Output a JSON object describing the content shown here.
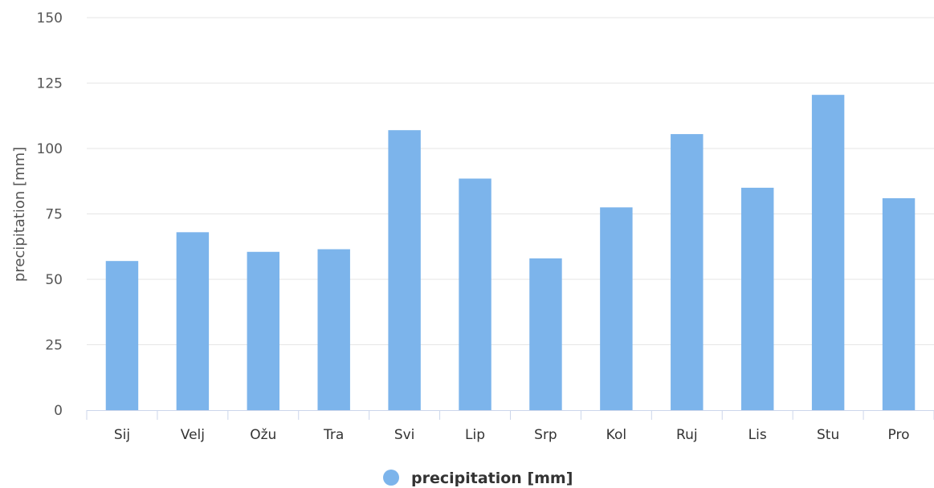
{
  "chart_data": {
    "type": "bar",
    "categories": [
      "Sij",
      "Velj",
      "Ožu",
      "Tra",
      "Svi",
      "Lip",
      "Srp",
      "Kol",
      "Ruj",
      "Lis",
      "Stu",
      "Pro"
    ],
    "series": [
      {
        "name": "precipitation [mm]",
        "color": "#7cb4eb",
        "values": [
          57,
          68,
          60.5,
          61.5,
          107,
          88.5,
          58,
          77.5,
          105.5,
          85,
          120.5,
          81
        ]
      }
    ],
    "xlabel": "",
    "ylabel": "precipitation [mm]",
    "ylim": [
      0,
      150
    ],
    "yticks": [
      "0",
      "25",
      "50",
      "75",
      "100",
      "125",
      "150"
    ],
    "grid": true,
    "legend": {
      "position": "bottom-center",
      "label": "precipitation [mm]"
    },
    "colors": {
      "bar": "#7cb4eb",
      "grid": "#e6e6e6",
      "axis": "#ccd6eb"
    }
  }
}
